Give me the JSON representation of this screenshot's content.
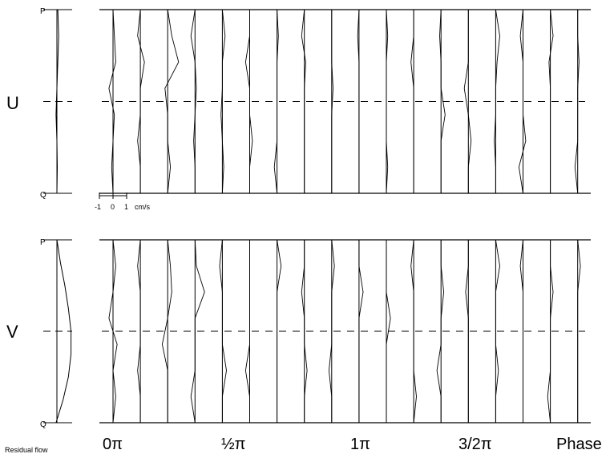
{
  "chart_data": [
    {
      "type": "line",
      "panel_label": "U",
      "depth_top_label": "P",
      "depth_bottom_label": "Q",
      "residual_profile": [
        0.1,
        0.2,
        0.1,
        0.0,
        -0.1,
        0.0,
        0.05,
        0.0
      ],
      "scale_bar": {
        "ticks": [
          "-1",
          "0",
          "1"
        ],
        "unit": "cm/s"
      },
      "x_labels": [
        "0π",
        "½π",
        "1π",
        "3/2π",
        "Phase"
      ],
      "phase_profiles": [
        [
          0.0,
          0.1,
          0.2,
          -0.3,
          0.1,
          0.0,
          -0.1,
          0.0
        ],
        [
          0.0,
          -0.2,
          0.3,
          0.0,
          0.0,
          -0.2,
          0.0,
          0.0
        ],
        [
          0.0,
          0.3,
          0.8,
          -0.2,
          0.0,
          0.0,
          0.2,
          0.0
        ],
        [
          0.0,
          -0.3,
          0.0,
          0.1,
          0.0,
          -0.1,
          0.0,
          0.0
        ],
        [
          0.0,
          0.2,
          0.0,
          0.0,
          -0.1,
          0.0,
          0.1,
          0.0
        ],
        [
          0.0,
          0.0,
          -0.3,
          0.0,
          0.0,
          0.2,
          0.0,
          0.0
        ],
        [
          0.0,
          0.1,
          0.0,
          0.0,
          0.0,
          0.0,
          -0.2,
          0.0
        ],
        [
          0.0,
          -0.2,
          0.1,
          0.0,
          0.0,
          0.0,
          0.0,
          0.0
        ],
        [
          0.0,
          0.0,
          0.0,
          0.1,
          0.0,
          0.0,
          0.0,
          0.0
        ],
        [
          0.0,
          -0.1,
          0.0,
          0.0,
          0.0,
          0.0,
          0.0,
          0.0
        ],
        [
          0.0,
          0.1,
          0.0,
          0.0,
          0.0,
          0.0,
          0.1,
          0.0
        ],
        [
          0.0,
          0.0,
          -0.2,
          0.0,
          0.0,
          0.0,
          0.0,
          0.0
        ],
        [
          0.0,
          -0.1,
          0.0,
          0.0,
          0.3,
          0.0,
          0.0,
          0.0
        ],
        [
          0.0,
          0.0,
          0.0,
          -0.3,
          0.0,
          0.2,
          0.0,
          0.0
        ],
        [
          0.0,
          0.3,
          0.1,
          0.0,
          0.0,
          -0.1,
          0.0,
          0.0
        ],
        [
          0.0,
          -0.2,
          0.0,
          0.0,
          0.0,
          0.2,
          -0.3,
          0.0
        ],
        [
          0.0,
          0.2,
          -0.1,
          0.0,
          0.0,
          0.0,
          0.0,
          0.0
        ],
        [
          0.0,
          0.0,
          0.1,
          0.0,
          0.0,
          0.0,
          -0.2,
          0.0
        ]
      ]
    },
    {
      "type": "line",
      "panel_label": "V",
      "depth_top_label": "P",
      "depth_bottom_label": "Q",
      "residual_label": "Residual flow",
      "residual_profile": [
        0.0,
        0.4,
        0.9,
        1.3,
        1.6,
        1.6,
        1.3,
        0.7,
        -0.1
      ],
      "x_labels": [
        "0π",
        "½π",
        "1π",
        "3/2π",
        "Phase"
      ],
      "phase_profiles": [
        [
          0.0,
          0.2,
          0.0,
          -0.3,
          0.3,
          0.0,
          0.2,
          0.0
        ],
        [
          0.0,
          -0.2,
          0.0,
          0.0,
          0.0,
          -0.2,
          0.0,
          0.0
        ],
        [
          0.0,
          0.2,
          0.3,
          0.0,
          -0.4,
          0.0,
          0.0,
          0.0
        ],
        [
          0.0,
          0.1,
          0.7,
          0.0,
          0.0,
          0.0,
          -0.3,
          0.0
        ],
        [
          0.0,
          -0.2,
          0.0,
          0.0,
          0.0,
          0.3,
          0.0,
          0.0
        ],
        [
          0.0,
          0.0,
          0.0,
          0.0,
          0.0,
          -0.3,
          0.0,
          0.0
        ],
        [
          0.0,
          0.3,
          0.0,
          0.0,
          0.0,
          0.0,
          0.0,
          0.0
        ],
        [
          0.0,
          0.0,
          -0.2,
          0.0,
          0.0,
          0.2,
          0.0,
          0.0
        ],
        [
          0.0,
          0.2,
          0.0,
          0.0,
          0.0,
          -0.2,
          0.0,
          0.0
        ],
        [
          0.0,
          0.0,
          0.3,
          0.0,
          0.0,
          0.0,
          0.0,
          0.0
        ],
        [
          0.0,
          0.0,
          0.0,
          0.3,
          0.0,
          0.0,
          0.0,
          0.0
        ],
        [
          0.0,
          -0.2,
          0.0,
          0.0,
          0.0,
          0.0,
          0.2,
          0.0
        ],
        [
          0.0,
          0.0,
          0.2,
          0.0,
          0.0,
          -0.3,
          0.0,
          0.0
        ],
        [
          0.0,
          0.0,
          -0.2,
          0.0,
          0.0,
          0.0,
          0.0,
          0.0
        ],
        [
          0.0,
          0.3,
          0.0,
          0.0,
          0.0,
          0.2,
          0.0,
          0.0
        ],
        [
          0.0,
          -0.2,
          0.0,
          0.0,
          0.0,
          0.0,
          0.0,
          0.0
        ],
        [
          0.0,
          0.0,
          0.2,
          0.0,
          0.0,
          0.0,
          -0.2,
          0.0
        ],
        [
          0.0,
          0.2,
          0.0,
          0.0,
          0.0,
          0.0,
          0.0,
          0.0
        ]
      ]
    }
  ]
}
